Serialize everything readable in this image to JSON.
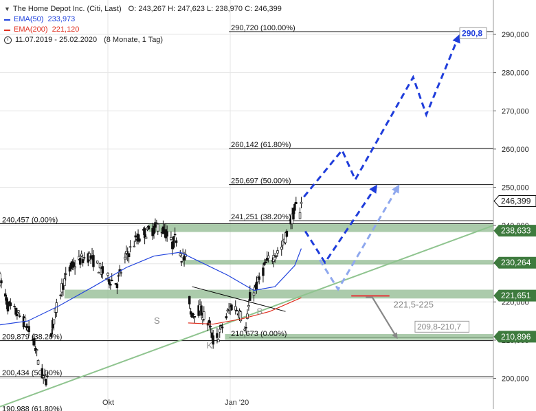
{
  "legend": {
    "instrument": "The Home Depot Inc. (Citi, Last)",
    "ohlc": "O: 243,267  H: 247,623  L: 238,970  C: 246,399",
    "ema50_label": "EMA(50)",
    "ema50_value": "233,973",
    "ema200_label": "EMA(200)",
    "ema200_value": "221,120",
    "period": "11.07.2019 - 25.02.2020",
    "period_detail": "(8 Monate, 1 Tag)"
  },
  "chart_data": {
    "type": "candlestick",
    "ylim": [
      192,
      299
    ],
    "xlim": [
      "2019-07-11",
      "2020-07-20"
    ],
    "y_ticks": [
      "200,000",
      "210,000",
      "220,000",
      "230,000",
      "240,000",
      "250,000",
      "260,000",
      "270,000",
      "280,000",
      "290,000"
    ],
    "y_tick_values": [
      200,
      210,
      220,
      230,
      240,
      250,
      260,
      270,
      280,
      290
    ],
    "x_ticks": [
      {
        "label": "Okt",
        "x": "2019-10-01"
      },
      {
        "label": "Jan '20",
        "x": "2020-01-02"
      }
    ],
    "colors": {
      "ema50": "#2244dd",
      "ema200": "#e03020",
      "trendline": "#8fc48f",
      "zone": "#8fb98f",
      "zone_label_bg": "#3e7b3e",
      "arrow_dark": "#1f3ddb",
      "arrow_light": "#8fa8ee",
      "arrow_grey": "#888888",
      "target_text": "#1f3ddb"
    },
    "price_path": [
      [
        "2019-07-11",
        226
      ],
      [
        "2019-07-17",
        219
      ],
      [
        "2019-07-24",
        217
      ],
      [
        "2019-07-31",
        214
      ],
      [
        "2019-08-06",
        209
      ],
      [
        "2019-08-12",
        201
      ],
      [
        "2019-08-15",
        199
      ],
      [
        "2019-08-20",
        214
      ],
      [
        "2019-08-27",
        224
      ],
      [
        "2019-09-03",
        229
      ],
      [
        "2019-09-10",
        231
      ],
      [
        "2019-09-17",
        232
      ],
      [
        "2019-09-24",
        229
      ],
      [
        "2019-10-01",
        226
      ],
      [
        "2019-10-08",
        225
      ],
      [
        "2019-10-15",
        232
      ],
      [
        "2019-10-22",
        236
      ],
      [
        "2019-10-29",
        238
      ],
      [
        "2019-11-05",
        239
      ],
      [
        "2019-11-08",
        240
      ],
      [
        "2019-11-14",
        238
      ],
      [
        "2019-11-19",
        235
      ],
      [
        "2019-11-22",
        237
      ],
      [
        "2019-11-26",
        232
      ],
      [
        "2019-11-29",
        231
      ],
      [
        "2019-12-03",
        217
      ],
      [
        "2019-12-10",
        218
      ],
      [
        "2019-12-17",
        214
      ],
      [
        "2019-12-20",
        210
      ],
      [
        "2019-12-24",
        211
      ],
      [
        "2019-12-31",
        217
      ],
      [
        "2020-01-03",
        219
      ],
      [
        "2020-01-08",
        218
      ],
      [
        "2020-01-14",
        213
      ],
      [
        "2020-01-17",
        221
      ],
      [
        "2020-01-23",
        225
      ],
      [
        "2020-01-29",
        230
      ],
      [
        "2020-02-04",
        232
      ],
      [
        "2020-02-10",
        234
      ],
      [
        "2020-02-14",
        238
      ],
      [
        "2020-02-18",
        242
      ],
      [
        "2020-02-21",
        245
      ],
      [
        "2020-02-24",
        243
      ],
      [
        "2020-02-25",
        246.399
      ]
    ],
    "ema50": [
      [
        "2019-07-11",
        214
      ],
      [
        "2019-08-01",
        215
      ],
      [
        "2019-08-25",
        219
      ],
      [
        "2019-09-20",
        224
      ],
      [
        "2019-10-15",
        229
      ],
      [
        "2019-11-05",
        232
      ],
      [
        "2019-11-25",
        233
      ],
      [
        "2019-12-10",
        230.5
      ],
      [
        "2019-12-31",
        227
      ],
      [
        "2020-01-20",
        223
      ],
      [
        "2020-02-05",
        224
      ],
      [
        "2020-02-20",
        229.5
      ],
      [
        "2020-02-25",
        233.973
      ]
    ],
    "ema200": [
      [
        "2019-12-01",
        214.5
      ],
      [
        "2019-12-20",
        214.2
      ],
      [
        "2020-01-10",
        215.5
      ],
      [
        "2020-02-01",
        217.5
      ],
      [
        "2020-02-25",
        221.12
      ]
    ],
    "levels": [
      {
        "value": 290.72,
        "label": "290,720 (100.00%)",
        "label_x": "2020-01-01",
        "x_from": "2020-01-01"
      },
      {
        "value": 260.142,
        "label": "260,142 (61.80%)",
        "label_x": "2020-01-01",
        "x_from": "2020-01-01"
      },
      {
        "value": 250.697,
        "label": "250,697 (50.00%)",
        "label_x": "2020-01-01",
        "x_from": "2020-01-01"
      },
      {
        "value": 241.251,
        "label": "241,251 (38.20%)",
        "label_x": "2020-01-01",
        "x_from": "2020-01-01"
      },
      {
        "value": 240.457,
        "label": "240,457 (0.00%)",
        "label_x": "2019-07-11",
        "x_from": "2019-07-11"
      },
      {
        "value": 210.673,
        "label": "210,673 (0.00%)",
        "label_x": "2020-01-01",
        "x_from": "2020-01-01"
      },
      {
        "value": 209.879,
        "label": "209,879 (38.20%)",
        "label_x": "2019-07-11",
        "x_from": "2019-07-11"
      },
      {
        "value": 200.434,
        "label": "200,434 (50.00%)",
        "label_x": "2019-07-11",
        "x_from": "2019-07-11"
      },
      {
        "value": 190.988,
        "label": "190,988 (61.80%)",
        "label_x": "2019-07-11",
        "x_from": "2019-07-11"
      }
    ],
    "zones": [
      {
        "from": 238.3,
        "to": 240.4,
        "x_from": "2019-11-01"
      },
      {
        "from": 229.8,
        "to": 231.0,
        "x_from": "2019-11-27"
      },
      {
        "from": 220.9,
        "to": 223.2,
        "x_from": "2019-08-29"
      },
      {
        "from": 210.1,
        "to": 211.6,
        "x_from": "2019-12-29"
      }
    ],
    "price_boxes": [
      {
        "value": 290.0,
        "label": "290,000",
        "style": "tick"
      },
      {
        "value": 246.399,
        "label": "246,399",
        "style": "last"
      },
      {
        "value": 238.633,
        "label": "238,633",
        "style": "zone"
      },
      {
        "value": 230.264,
        "label": "230,264",
        "style": "zone"
      },
      {
        "value": 221.651,
        "label": "221,651",
        "style": "zone"
      },
      {
        "value": 210.896,
        "label": "210,896",
        "style": "zone"
      }
    ],
    "trendlines": [
      {
        "points": [
          [
            "2019-07-11",
            192.6
          ],
          [
            "2020-07-20",
            240.0
          ]
        ],
        "color": "trendline"
      },
      {
        "points": [
          [
            "2019-12-04",
            224.0
          ],
          [
            "2020-02-13",
            217.5
          ]
        ],
        "color": "black"
      }
    ],
    "projections": [
      {
        "style": "dark",
        "points": [
          [
            "2020-02-27",
            247.5
          ],
          [
            "2020-03-27",
            259.7
          ],
          [
            "2020-04-06",
            252.0
          ],
          [
            "2020-05-20",
            278.8
          ],
          [
            "2020-05-30",
            269.0
          ],
          [
            "2020-06-23",
            289.0
          ]
        ]
      },
      {
        "style": "dark",
        "points": [
          [
            "2020-02-28",
            238.5
          ],
          [
            "2020-03-14",
            230.3
          ],
          [
            "2020-04-21",
            249.8
          ]
        ]
      },
      {
        "style": "light",
        "points": [
          [
            "2020-03-10",
            231.0
          ],
          [
            "2020-03-24",
            223.3
          ],
          [
            "2020-05-08",
            249.8
          ]
        ]
      },
      {
        "style": "grey",
        "points": [
          [
            "2020-04-14",
            221.2
          ],
          [
            "2020-04-19",
            221.2
          ],
          [
            "2020-05-07",
            211.0
          ]
        ]
      }
    ],
    "redline": {
      "value": 221.6,
      "x_from": "2020-04-03",
      "x_to": "2020-05-02"
    },
    "annotations": [
      {
        "text": "S",
        "x": "2019-11-05",
        "y": 214.3,
        "color": "#8a8a8a"
      },
      {
        "text": "S",
        "x": "2020-01-22",
        "y": 216.7,
        "color": "#8a8a8a"
      },
      {
        "text": "K",
        "x": "2019-12-15",
        "y": 207.8,
        "color": "#8a8a8a"
      },
      {
        "text": "221,5-225",
        "x": "2020-05-05",
        "y": 218.5,
        "color": "#8a8a8a"
      },
      {
        "text": "209,8-210,7",
        "x": "2020-05-23",
        "y": 212.8,
        "color": "#8a8a8a",
        "boxed": true
      },
      {
        "text": "290,8",
        "x": "2020-06-26",
        "y": 289.6,
        "color": "#1f3ddb",
        "boxed": true
      }
    ]
  }
}
